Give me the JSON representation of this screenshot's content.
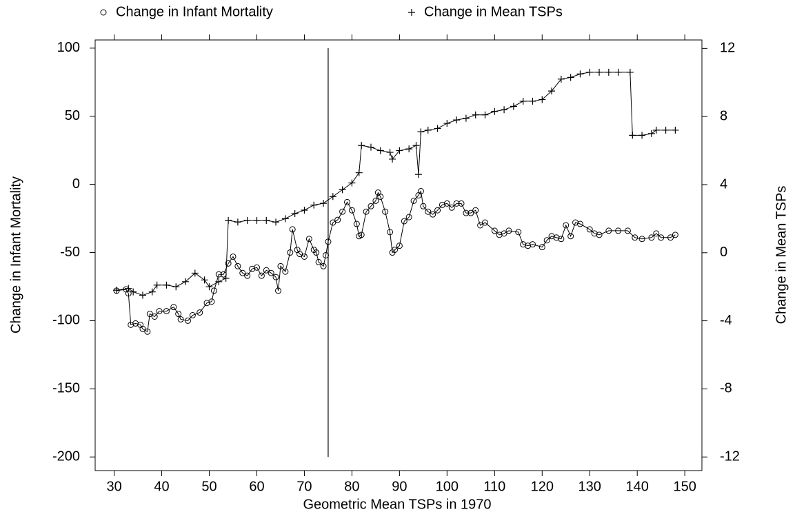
{
  "chart_data": {
    "type": "line",
    "xlabel": "Geometric Mean TSPs in 1970",
    "ylabel": "Change in Infant Mortality",
    "y2label": "Change in Mean TSPs",
    "xlim": [
      26,
      153.6
    ],
    "ylim": [
      -210,
      106
    ],
    "y2lim": [
      -12.8,
      12.5
    ],
    "xticks": [
      30,
      40,
      50,
      60,
      70,
      80,
      90,
      100,
      110,
      120,
      130,
      140,
      150
    ],
    "yticks": [
      100,
      50,
      0,
      -50,
      -100,
      -150,
      -200
    ],
    "y2ticks": [
      12,
      8,
      4,
      0,
      -4,
      -8,
      -12
    ],
    "color": "#000000",
    "vline": {
      "x": 75,
      "y": [
        -200,
        100
      ]
    },
    "series": [
      {
        "name": "Change in Infant Mortality",
        "marker": "circle",
        "axis": "y",
        "x": [
          30.5,
          32.5,
          33,
          33.5,
          34.5,
          35.5,
          36,
          37,
          37.5,
          38.5,
          39.5,
          41,
          42.5,
          43.5,
          44,
          45.5,
          46.5,
          48,
          49.5,
          50.5,
          51,
          52,
          53,
          54,
          55,
          56,
          57,
          58,
          59,
          60,
          61,
          62,
          63,
          64,
          64.5,
          65,
          66,
          67,
          67.5,
          68.5,
          69,
          70,
          71,
          72,
          72.5,
          73,
          74,
          74.5,
          75,
          76,
          77,
          78,
          79,
          80,
          81,
          81.5,
          82,
          83,
          84,
          85,
          85.5,
          86,
          87,
          88,
          88.5,
          89,
          90,
          91,
          92,
          93,
          94,
          94.5,
          95,
          96,
          97,
          98,
          99,
          100,
          101,
          102,
          103,
          104,
          105,
          106,
          107,
          108,
          110,
          111,
          112,
          113,
          115,
          116,
          117,
          118,
          120,
          121,
          122,
          123,
          124,
          125,
          126,
          127,
          128,
          130,
          131,
          132,
          134,
          136,
          138,
          139.5,
          141,
          143,
          144,
          145,
          147,
          148
        ],
        "values": [
          -78,
          -77,
          -80,
          -103,
          -102,
          -103,
          -106,
          -108,
          -95,
          -97,
          -93,
          -93,
          -90,
          -95,
          -99,
          -100,
          -96,
          -94,
          -87,
          -86,
          -78,
          -66,
          -66,
          -58,
          -53,
          -60,
          -65,
          -67,
          -62,
          -61,
          -67,
          -63,
          -65,
          -68,
          -78,
          -60,
          -64,
          -50,
          -33,
          -48,
          -51,
          -53,
          -40,
          -48,
          -50,
          -57,
          -60,
          -52,
          -42,
          -28,
          -26,
          -20,
          -13,
          -19,
          -29,
          -38,
          -37,
          -20,
          -16,
          -12,
          -6,
          -9,
          -20,
          -35,
          -50,
          -48,
          -45,
          -27,
          -24,
          -12,
          -8,
          -5,
          -16,
          -20,
          -22,
          -19,
          -15,
          -14,
          -17,
          -14,
          -14,
          -21,
          -21,
          -19,
          -30,
          -28,
          -34,
          -37,
          -36,
          -34,
          -35,
          -44,
          -45,
          -44,
          -46,
          -41,
          -38,
          -39,
          -40,
          -30,
          -38,
          -28,
          -29,
          -33,
          -36,
          -37,
          -34,
          -34,
          -34,
          -39,
          -40,
          -39,
          -36,
          -39,
          -39,
          -37
        ]
      },
      {
        "name": "Change in Mean TSPs",
        "marker": "plus",
        "axis": "y2",
        "x": [
          30.5,
          33,
          34,
          36,
          38,
          39,
          41,
          43,
          45,
          47,
          49,
          50,
          52,
          53.5,
          54,
          56,
          58,
          60,
          62,
          64,
          66,
          68,
          70,
          72,
          74,
          76,
          78,
          80,
          81.5,
          82,
          84,
          86,
          88,
          88.5,
          90,
          92,
          93.5,
          94,
          94.5,
          96,
          98,
          100,
          102,
          104,
          106,
          108,
          110,
          112,
          114,
          116,
          118,
          120,
          122,
          124,
          126,
          128,
          130,
          132,
          134,
          136,
          138.5,
          139,
          141,
          143,
          144,
          146,
          148
        ],
        "values": [
          -2.2,
          -2.1,
          -2.3,
          -2.5,
          -2.3,
          -1.9,
          -1.9,
          -2.0,
          -1.7,
          -1.2,
          -1.6,
          -2.0,
          -1.7,
          -1.5,
          1.9,
          1.8,
          1.9,
          1.9,
          1.9,
          1.8,
          2.0,
          2.3,
          2.5,
          2.8,
          2.9,
          3.3,
          3.7,
          4.1,
          4.7,
          6.3,
          6.2,
          6.0,
          5.9,
          5.5,
          6.0,
          6.1,
          6.3,
          4.6,
          7.1,
          7.2,
          7.3,
          7.6,
          7.8,
          7.9,
          8.1,
          8.1,
          8.3,
          8.4,
          8.6,
          8.9,
          8.9,
          9.0,
          9.5,
          10.2,
          10.3,
          10.5,
          10.6,
          10.6,
          10.6,
          10.6,
          10.6,
          6.9,
          6.9,
          7.0,
          7.2,
          7.2,
          7.2
        ]
      }
    ]
  }
}
